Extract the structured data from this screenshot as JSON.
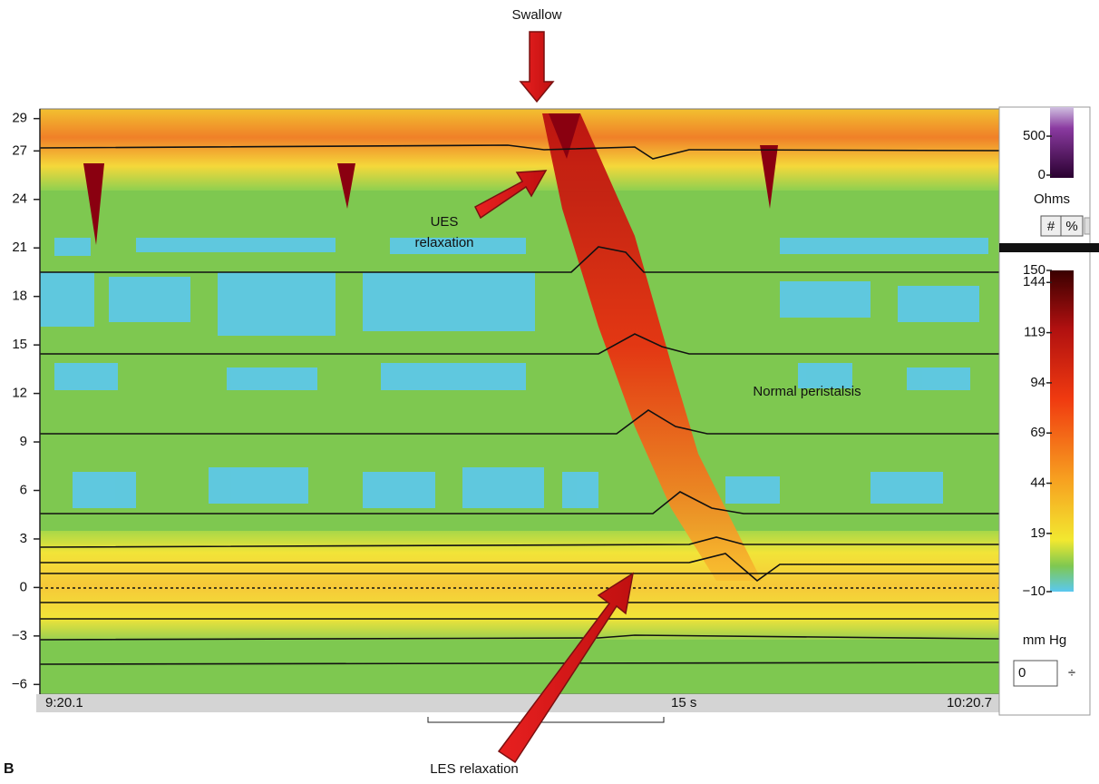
{
  "panel_label": "B",
  "annotations": {
    "swallow": "Swallow",
    "ues": [
      "UES",
      "relaxation"
    ],
    "peristalsis": "Normal peristalsis",
    "les": "LES relaxation"
  },
  "y_axis": {
    "lim": [
      -6.6,
      29.6
    ],
    "ticks": [
      29,
      27,
      24,
      21,
      18,
      15,
      12,
      9,
      6,
      3,
      0,
      {
        "value": -3,
        "label": "−3"
      },
      {
        "value": -6,
        "label": "−6"
      }
    ]
  },
  "time_axis": {
    "start": "9:20.1",
    "scale": "15 s",
    "end": "10:20.7"
  },
  "impedance_scale": {
    "lim": [
      0,
      850
    ],
    "ticks": [
      500,
      0
    ],
    "unit": "Ohms",
    "buttons": [
      "#",
      "%"
    ]
  },
  "pressure_scale": {
    "lim": [
      -10,
      150
    ],
    "ticks": [
      150,
      144,
      119,
      94,
      69,
      44,
      19,
      {
        "value": -10,
        "label": "−10"
      }
    ],
    "unit": "mm Hg"
  },
  "offset_input": "0"
}
